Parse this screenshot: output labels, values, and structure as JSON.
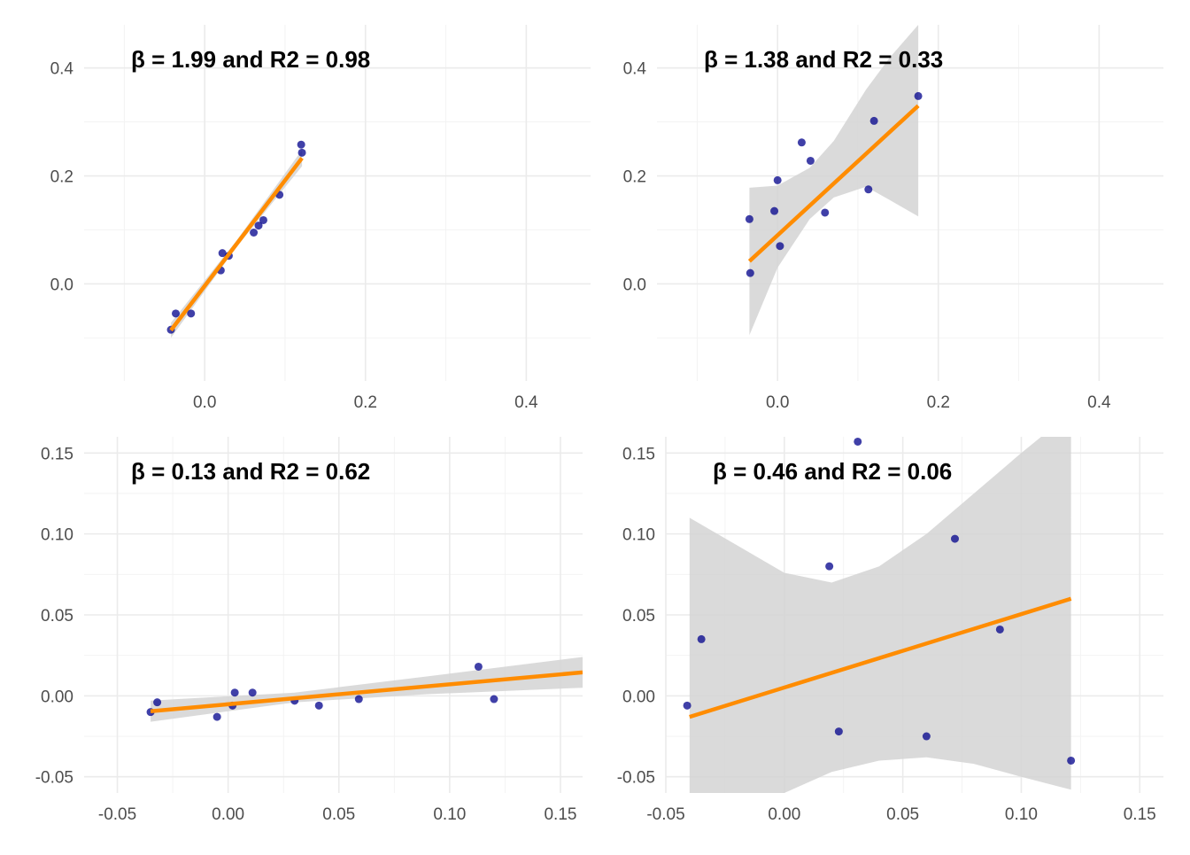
{
  "colors": {
    "point": "#00008b",
    "fit_line": "#ff8c00",
    "ribbon": "#d3d3d3",
    "grid": "#ebebeb",
    "text": "#4d4d4d"
  },
  "chart_data": [
    {
      "type": "scatter",
      "annotation": "β = 1.99 and R2 = 0.98",
      "xlim": [
        -0.15,
        0.48
      ],
      "ylim": [
        -0.18,
        0.48
      ],
      "x_ticks": [
        0.0,
        0.2,
        0.4
      ],
      "x_tick_labels": [
        "0.0",
        "0.2",
        "0.4"
      ],
      "y_ticks": [
        0.0,
        0.2,
        0.4
      ],
      "y_tick_labels": [
        "0.0",
        "0.2",
        "0.4"
      ],
      "grid": true,
      "points": [
        {
          "x": -0.042,
          "y": -0.085
        },
        {
          "x": -0.036,
          "y": -0.055
        },
        {
          "x": -0.017,
          "y": -0.055
        },
        {
          "x": 0.02,
          "y": 0.025
        },
        {
          "x": 0.022,
          "y": 0.057
        },
        {
          "x": 0.03,
          "y": 0.052
        },
        {
          "x": 0.061,
          "y": 0.095
        },
        {
          "x": 0.067,
          "y": 0.108
        },
        {
          "x": 0.073,
          "y": 0.118
        },
        {
          "x": 0.093,
          "y": 0.165
        },
        {
          "x": 0.12,
          "y": 0.258
        },
        {
          "x": 0.121,
          "y": 0.243
        }
      ],
      "fit": {
        "x0": -0.042,
        "x1": 0.121,
        "y0": -0.086,
        "y1": 0.233
      },
      "ribbon": {
        "x": [
          -0.042,
          0.039,
          0.121
        ],
        "lower": [
          -0.1,
          0.067,
          0.218
        ],
        "upper": [
          -0.072,
          0.079,
          0.248
        ]
      }
    },
    {
      "type": "scatter",
      "annotation": "β = 1.38 and R2 = 0.33",
      "xlim": [
        -0.15,
        0.48
      ],
      "ylim": [
        -0.18,
        0.48
      ],
      "x_ticks": [
        0.0,
        0.2,
        0.4
      ],
      "x_tick_labels": [
        "0.0",
        "0.2",
        "0.4"
      ],
      "y_ticks": [
        0.0,
        0.2,
        0.4
      ],
      "y_tick_labels": [
        "0.0",
        "0.2",
        "0.4"
      ],
      "grid": true,
      "points": [
        {
          "x": -0.035,
          "y": 0.12
        },
        {
          "x": -0.034,
          "y": 0.02
        },
        {
          "x": -0.004,
          "y": 0.135
        },
        {
          "x": 0.0,
          "y": 0.192
        },
        {
          "x": 0.003,
          "y": 0.07
        },
        {
          "x": 0.03,
          "y": 0.262
        },
        {
          "x": 0.041,
          "y": 0.228
        },
        {
          "x": 0.059,
          "y": 0.132
        },
        {
          "x": 0.113,
          "y": 0.175
        },
        {
          "x": 0.12,
          "y": 0.302
        },
        {
          "x": 0.175,
          "y": 0.348
        }
      ],
      "fit": {
        "x0": -0.035,
        "x1": 0.175,
        "y0": 0.042,
        "y1": 0.33
      },
      "ribbon": {
        "x": [
          -0.035,
          0.0,
          0.04,
          0.07,
          0.11,
          0.14,
          0.175
        ],
        "lower": [
          -0.095,
          0.03,
          0.12,
          0.16,
          0.18,
          0.155,
          0.125
        ],
        "upper": [
          0.178,
          0.182,
          0.215,
          0.265,
          0.36,
          0.42,
          0.48
        ]
      }
    },
    {
      "type": "scatter",
      "annotation": "β = 0.13 and R2 = 0.62",
      "xlim": [
        -0.065,
        0.16
      ],
      "ylim": [
        -0.06,
        0.16
      ],
      "x_ticks": [
        -0.05,
        0.0,
        0.05,
        0.1,
        0.15
      ],
      "x_tick_labels": [
        "-0.05",
        "0.00",
        "0.05",
        "0.10",
        "0.15"
      ],
      "y_ticks": [
        -0.05,
        0.0,
        0.05,
        0.1,
        0.15
      ],
      "y_tick_labels": [
        "-0.05",
        "0.00",
        "0.05",
        "0.10",
        "0.15"
      ],
      "grid": true,
      "points": [
        {
          "x": -0.035,
          "y": -0.01
        },
        {
          "x": -0.032,
          "y": -0.004
        },
        {
          "x": -0.005,
          "y": -0.013
        },
        {
          "x": 0.002,
          "y": -0.006
        },
        {
          "x": 0.003,
          "y": 0.002
        },
        {
          "x": 0.011,
          "y": 0.002
        },
        {
          "x": 0.03,
          "y": -0.003
        },
        {
          "x": 0.041,
          "y": -0.006
        },
        {
          "x": 0.059,
          "y": -0.002
        },
        {
          "x": 0.113,
          "y": 0.018
        },
        {
          "x": 0.12,
          "y": -0.002
        }
      ],
      "fit": {
        "x0": -0.035,
        "x1": 0.16,
        "y0": -0.0095,
        "y1": 0.0145
      },
      "ribbon": {
        "x": [
          -0.035,
          0.03,
          0.09,
          0.16
        ],
        "lower": [
          -0.016,
          -0.004,
          0.001,
          0.005
        ],
        "upper": [
          -0.003,
          0.002,
          0.012,
          0.024
        ]
      }
    },
    {
      "type": "scatter",
      "annotation": "β = 0.46 and R2 = 0.06",
      "xlim": [
        -0.05,
        0.16
      ],
      "ylim": [
        -0.06,
        0.16
      ],
      "x_ticks": [
        -0.05,
        0.0,
        0.05,
        0.1,
        0.15
      ],
      "x_tick_labels": [
        "-0.05",
        "0.00",
        "0.05",
        "0.10",
        "0.15"
      ],
      "y_ticks": [
        -0.05,
        0.0,
        0.05,
        0.1,
        0.15
      ],
      "y_tick_labels": [
        "-0.05",
        "0.00",
        "0.05",
        "0.10",
        "0.15"
      ],
      "grid": true,
      "points": [
        {
          "x": -0.041,
          "y": -0.006
        },
        {
          "x": -0.035,
          "y": 0.035
        },
        {
          "x": 0.019,
          "y": 0.08
        },
        {
          "x": 0.023,
          "y": -0.022
        },
        {
          "x": 0.031,
          "y": 0.157
        },
        {
          "x": 0.06,
          "y": -0.025
        },
        {
          "x": 0.072,
          "y": 0.097
        },
        {
          "x": 0.091,
          "y": 0.041
        },
        {
          "x": 0.121,
          "y": -0.04
        }
      ],
      "fit": {
        "x0": -0.04,
        "x1": 0.121,
        "y0": -0.013,
        "y1": 0.06
      },
      "ribbon": {
        "x": [
          -0.04,
          -0.02,
          0.0,
          0.02,
          0.04,
          0.06,
          0.08,
          0.1,
          0.121
        ],
        "lower": [
          -0.08,
          -0.075,
          -0.06,
          -0.047,
          -0.04,
          -0.038,
          -0.042,
          -0.05,
          -0.058
        ],
        "upper": [
          0.11,
          0.093,
          0.076,
          0.07,
          0.08,
          0.1,
          0.125,
          0.15,
          0.175
        ]
      }
    }
  ]
}
